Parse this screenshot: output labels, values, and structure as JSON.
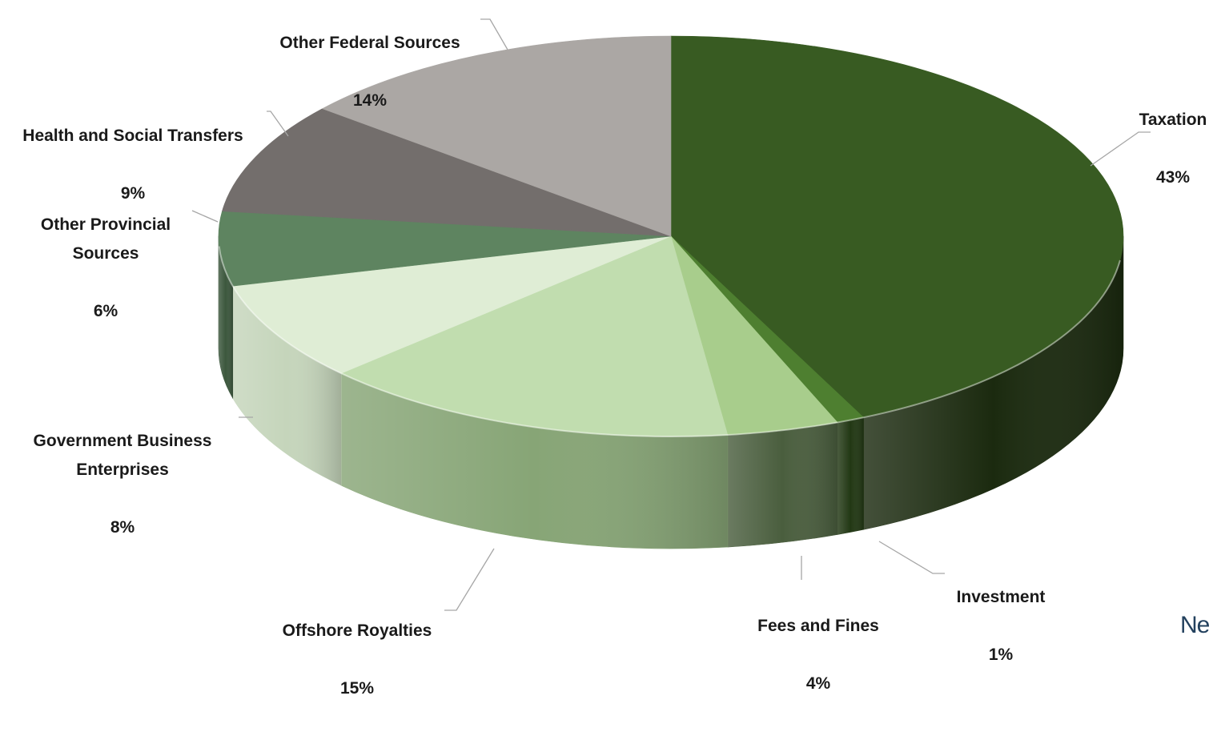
{
  "chart_data": {
    "type": "pie",
    "title": "",
    "style": "3d",
    "slices": [
      {
        "label": "Taxation",
        "percent_label": "43%",
        "value": 43,
        "color": "#385b22",
        "side_color": "#1b2a0f"
      },
      {
        "label": "Investment",
        "percent_label": "1%",
        "value": 1,
        "color": "#4e7f30",
        "side_color": "#223814"
      },
      {
        "label": "Fees and Fines",
        "percent_label": "4%",
        "value": 4,
        "color": "#a8cd8c",
        "side_color": "#4a5e3e"
      },
      {
        "label": "Offshore Royalties",
        "percent_label": "15%",
        "value": 15,
        "color": "#c1ddaf",
        "side_color": "#87a576"
      },
      {
        "label": "Government Business\nEnterprises",
        "percent_label": "8%",
        "value": 8,
        "color": "#dfedd5",
        "side_color": "#c5d5bb"
      },
      {
        "label": "Other Provincial\nSources",
        "percent_label": "6%",
        "value": 6,
        "color": "#5e8460",
        "side_color": "#3c573d"
      },
      {
        "label": "Health and Social Transfers",
        "percent_label": "9%",
        "value": 9,
        "color": "#736e6c",
        "side_color": "#4f4b49"
      },
      {
        "label": "Other Federal Sources",
        "percent_label": "14%",
        "value": 14,
        "color": "#aba7a4",
        "side_color": "#7b7774"
      }
    ]
  },
  "brand": {
    "text": "Ne"
  }
}
